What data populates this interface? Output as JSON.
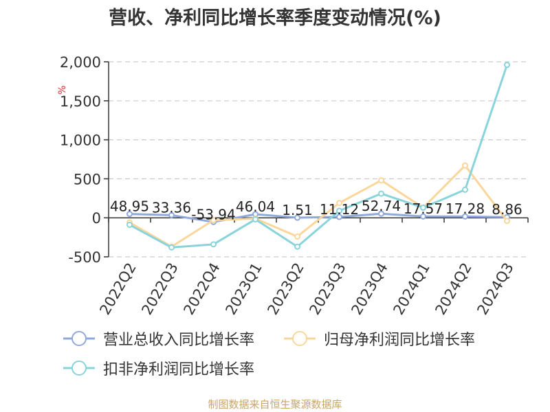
{
  "title": "营收、净利同比增长率季度变动情况(%)",
  "source": "制图数据来自恒生聚源数据库",
  "chart_data": {
    "type": "line",
    "categories": [
      "2022Q2",
      "2022Q3",
      "2022Q4",
      "2023Q1",
      "2023Q2",
      "2023Q3",
      "2023Q4",
      "2024Q1",
      "2024Q2",
      "2024Q3"
    ],
    "ylabel": "%",
    "ylim": [
      -500,
      2000
    ],
    "yticks": [
      -500,
      0,
      500,
      1000,
      1500,
      2000
    ],
    "ytick_labels": [
      "-500",
      "0",
      "500",
      "1,000",
      "1,500",
      "2,000"
    ],
    "grid": true,
    "legend_position": "bottom",
    "series": [
      {
        "name": "营业总收入同比增长率",
        "color": "#8fa9dc",
        "values": [
          48.95,
          33.36,
          -53.94,
          46.04,
          1.51,
          11.12,
          52.74,
          17.57,
          17.28,
          8.86
        ],
        "labels": [
          "48.95",
          "33.36",
          "-53.94",
          "46.04",
          "1.51",
          "11.12",
          "52.74",
          "17.57",
          "17.28",
          "8.86"
        ]
      },
      {
        "name": "归母净利润同比增长率",
        "color": "#fad69a",
        "values": [
          -60,
          -370,
          -30,
          -10,
          -240,
          190,
          480,
          130,
          670,
          -40
        ]
      },
      {
        "name": "扣非净利润同比增长率",
        "color": "#88d4da",
        "values": [
          -90,
          -380,
          -340,
          -20,
          -370,
          90,
          310,
          130,
          360,
          1960
        ]
      }
    ]
  }
}
